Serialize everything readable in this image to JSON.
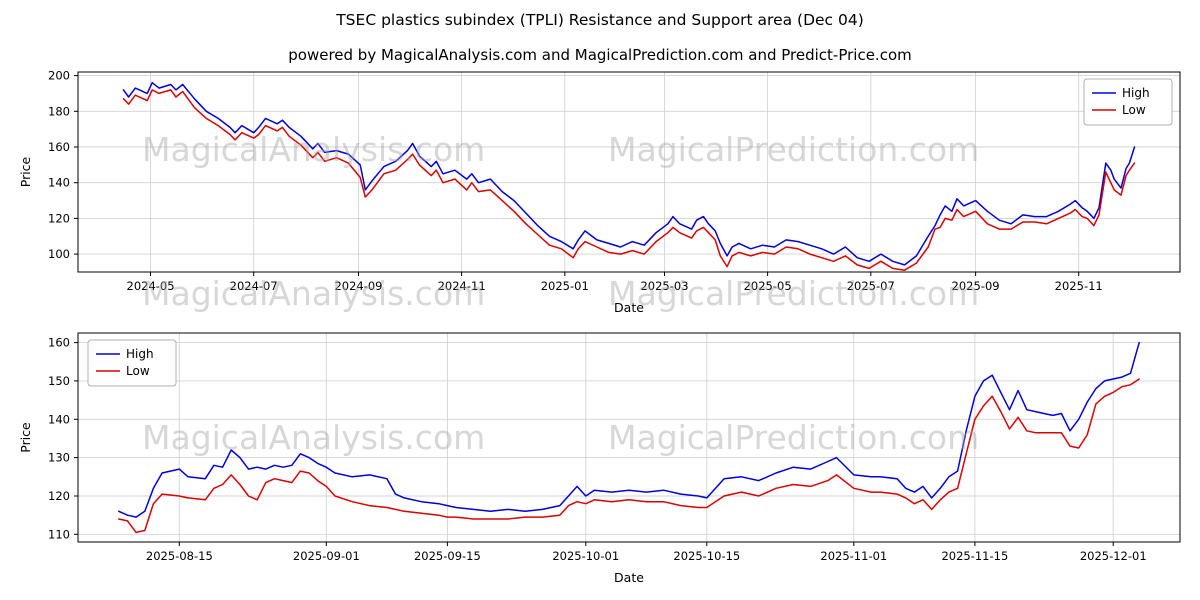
{
  "page": {
    "title": "TSEC plastics subindex (TPLI) Resistance and Support area (Dec 04)",
    "subtitle": "powered by MagicalAnalysis.com and MagicalPrediction.com and Predict-Price.com"
  },
  "watermarks": {
    "left": "MagicalAnalysis.com",
    "right": "MagicalPrediction.com"
  },
  "colors": {
    "high": "#0000dd",
    "low": "#dd0000",
    "grid": "#d3d3d3",
    "spine": "#000000",
    "legend_border": "#b0b0b0",
    "watermark": "#d7d7d7"
  },
  "chart_data": [
    {
      "type": "line",
      "title": "",
      "xlabel": "Date",
      "ylabel": "Price",
      "legend": "upper-right",
      "legend_entries": [
        "High",
        "Low"
      ],
      "grid": true,
      "x_margin": 0.045,
      "ylim": [
        90,
        202
      ],
      "yticks": [
        100,
        120,
        140,
        160,
        180,
        200
      ],
      "xticks": [
        {
          "pos": "2024-05-01",
          "label": "2024-05"
        },
        {
          "pos": "2024-07-01",
          "label": "2024-07"
        },
        {
          "pos": "2024-09-01",
          "label": "2024-09"
        },
        {
          "pos": "2024-11-01",
          "label": "2024-11"
        },
        {
          "pos": "2025-01-01",
          "label": "2025-01"
        },
        {
          "pos": "2025-03-01",
          "label": "2025-03"
        },
        {
          "pos": "2025-05-01",
          "label": "2025-05"
        },
        {
          "pos": "2025-07-01",
          "label": "2025-07"
        },
        {
          "pos": "2025-09-01",
          "label": "2025-09"
        },
        {
          "pos": "2025-11-01",
          "label": "2025-11"
        }
      ],
      "x": [
        "2024-04-15",
        "2024-04-18",
        "2024-04-22",
        "2024-04-29",
        "2024-05-02",
        "2024-05-06",
        "2024-05-13",
        "2024-05-16",
        "2024-05-20",
        "2024-05-27",
        "2024-06-03",
        "2024-06-10",
        "2024-06-17",
        "2024-06-20",
        "2024-06-24",
        "2024-07-01",
        "2024-07-04",
        "2024-07-08",
        "2024-07-15",
        "2024-07-18",
        "2024-07-22",
        "2024-07-29",
        "2024-08-05",
        "2024-08-08",
        "2024-08-12",
        "2024-08-19",
        "2024-08-26",
        "2024-09-02",
        "2024-09-05",
        "2024-09-09",
        "2024-09-16",
        "2024-09-23",
        "2024-09-30",
        "2024-10-03",
        "2024-10-07",
        "2024-10-14",
        "2024-10-17",
        "2024-10-21",
        "2024-10-28",
        "2024-11-04",
        "2024-11-07",
        "2024-11-11",
        "2024-11-18",
        "2024-11-25",
        "2024-12-02",
        "2024-12-09",
        "2024-12-16",
        "2024-12-23",
        "2024-12-30",
        "2025-01-06",
        "2025-01-09",
        "2025-01-13",
        "2025-01-20",
        "2025-01-27",
        "2025-02-03",
        "2025-02-10",
        "2025-02-17",
        "2025-02-24",
        "2025-03-03",
        "2025-03-06",
        "2025-03-10",
        "2025-03-17",
        "2025-03-20",
        "2025-03-24",
        "2025-03-27",
        "2025-03-31",
        "2025-04-03",
        "2025-04-07",
        "2025-04-10",
        "2025-04-14",
        "2025-04-21",
        "2025-04-28",
        "2025-05-05",
        "2025-05-12",
        "2025-05-19",
        "2025-05-26",
        "2025-06-02",
        "2025-06-09",
        "2025-06-16",
        "2025-06-23",
        "2025-06-30",
        "2025-07-07",
        "2025-07-14",
        "2025-07-21",
        "2025-07-28",
        "2025-08-04",
        "2025-08-08",
        "2025-08-11",
        "2025-08-14",
        "2025-08-18",
        "2025-08-21",
        "2025-08-25",
        "2025-09-01",
        "2025-09-08",
        "2025-09-15",
        "2025-09-22",
        "2025-09-29",
        "2025-10-06",
        "2025-10-13",
        "2025-10-20",
        "2025-10-27",
        "2025-10-30",
        "2025-11-03",
        "2025-11-06",
        "2025-11-10",
        "2025-11-13",
        "2025-11-17",
        "2025-11-20",
        "2025-11-22",
        "2025-11-26",
        "2025-11-29",
        "2025-12-01",
        "2025-12-04"
      ],
      "series": [
        {
          "name": "High",
          "color": "#0000dd",
          "values": [
            192,
            188,
            193,
            190,
            196,
            193,
            195,
            192,
            195,
            187,
            180,
            176,
            171,
            168,
            172,
            168,
            171,
            176,
            173,
            175,
            171,
            166,
            159,
            162,
            157,
            158,
            156,
            150,
            136,
            141,
            149,
            152,
            158,
            162,
            155,
            149,
            152,
            145,
            147,
            142,
            145,
            140,
            142,
            135,
            130,
            123,
            116,
            110,
            107,
            103,
            108,
            113,
            108,
            106,
            104,
            107,
            105,
            112,
            117,
            121,
            117,
            114,
            119,
            121,
            117,
            113,
            106,
            99,
            104,
            106,
            103,
            105,
            104,
            108,
            107,
            105,
            103,
            100,
            104,
            98,
            96,
            100,
            96,
            94,
            99,
            110,
            116,
            122,
            127,
            124,
            131,
            127,
            130,
            124,
            119,
            117,
            122,
            121,
            121,
            124,
            128,
            130,
            126,
            124,
            120,
            126,
            151,
            147,
            142,
            137,
            148,
            151,
            160
          ]
        },
        {
          "name": "Low",
          "color": "#dd0000",
          "values": [
            187,
            184,
            189,
            186,
            192,
            190,
            192,
            188,
            191,
            182,
            176,
            172,
            167,
            164,
            168,
            165,
            167,
            172,
            169,
            171,
            166,
            161,
            154,
            157,
            152,
            154,
            151,
            143,
            132,
            136,
            145,
            147,
            153,
            156,
            150,
            144,
            147,
            140,
            142,
            136,
            140,
            135,
            136,
            130,
            124,
            117,
            111,
            105,
            103,
            98,
            103,
            107,
            104,
            101,
            100,
            102,
            100,
            107,
            112,
            115,
            112,
            109,
            113,
            115,
            112,
            108,
            99,
            93,
            99,
            101,
            99,
            101,
            100,
            104,
            103,
            100,
            98,
            96,
            99,
            94,
            92,
            96,
            92,
            91,
            95,
            104,
            114,
            115,
            120,
            119,
            125,
            121,
            124,
            117,
            114,
            114,
            118,
            118,
            117,
            120,
            123,
            125,
            121,
            120,
            116,
            122,
            146,
            140,
            136,
            133,
            144,
            147,
            151
          ]
        }
      ]
    },
    {
      "type": "line",
      "title": "",
      "xlabel": "Date",
      "ylabel": "Price",
      "legend": "upper-left",
      "legend_entries": [
        "High",
        "Low"
      ],
      "grid": true,
      "x_margin": 0.04,
      "ylim": [
        108,
        162.5
      ],
      "yticks": [
        110,
        120,
        130,
        140,
        150,
        160
      ],
      "xticks": [
        {
          "pos": "2025-08-15",
          "label": "2025-08-15"
        },
        {
          "pos": "2025-09-01",
          "label": "2025-09-01"
        },
        {
          "pos": "2025-09-15",
          "label": "2025-09-15"
        },
        {
          "pos": "2025-10-01",
          "label": "2025-10-01"
        },
        {
          "pos": "2025-10-15",
          "label": "2025-10-15"
        },
        {
          "pos": "2025-11-01",
          "label": "2025-11-01"
        },
        {
          "pos": "2025-11-15",
          "label": "2025-11-15"
        },
        {
          "pos": "2025-12-01",
          "label": "2025-12-01"
        }
      ],
      "x": [
        "2025-08-08",
        "2025-08-09",
        "2025-08-10",
        "2025-08-11",
        "2025-08-12",
        "2025-08-13",
        "2025-08-15",
        "2025-08-16",
        "2025-08-18",
        "2025-08-19",
        "2025-08-20",
        "2025-08-21",
        "2025-08-22",
        "2025-08-23",
        "2025-08-24",
        "2025-08-25",
        "2025-08-26",
        "2025-08-27",
        "2025-08-28",
        "2025-08-29",
        "2025-08-30",
        "2025-08-31",
        "2025-09-01",
        "2025-09-02",
        "2025-09-04",
        "2025-09-06",
        "2025-09-08",
        "2025-09-09",
        "2025-09-10",
        "2025-09-12",
        "2025-09-14",
        "2025-09-15",
        "2025-09-16",
        "2025-09-18",
        "2025-09-20",
        "2025-09-22",
        "2025-09-24",
        "2025-09-26",
        "2025-09-28",
        "2025-09-29",
        "2025-09-30",
        "2025-10-01",
        "2025-10-02",
        "2025-10-04",
        "2025-10-06",
        "2025-10-08",
        "2025-10-10",
        "2025-10-12",
        "2025-10-14",
        "2025-10-15",
        "2025-10-17",
        "2025-10-19",
        "2025-10-21",
        "2025-10-23",
        "2025-10-25",
        "2025-10-27",
        "2025-10-29",
        "2025-10-30",
        "2025-11-01",
        "2025-11-03",
        "2025-11-04",
        "2025-11-06",
        "2025-11-07",
        "2025-11-08",
        "2025-11-09",
        "2025-11-10",
        "2025-11-11",
        "2025-11-12",
        "2025-11-13",
        "2025-11-14",
        "2025-11-15",
        "2025-11-16",
        "2025-11-17",
        "2025-11-18",
        "2025-11-19",
        "2025-11-20",
        "2025-11-21",
        "2025-11-22",
        "2025-11-24",
        "2025-11-25",
        "2025-11-26",
        "2025-11-27",
        "2025-11-28",
        "2025-11-29",
        "2025-11-30",
        "2025-12-01",
        "2025-12-02",
        "2025-12-03",
        "2025-12-04"
      ],
      "series": [
        {
          "name": "High",
          "color": "#0000dd",
          "values": [
            116,
            115,
            114.5,
            116,
            122,
            126,
            127,
            125,
            124.5,
            128,
            127.5,
            132,
            130,
            127,
            127.5,
            127,
            128,
            127.5,
            128,
            131,
            130,
            128.5,
            127.5,
            126,
            125,
            125.5,
            124.5,
            120.5,
            119.5,
            118.5,
            118,
            117.5,
            117,
            116.5,
            116,
            116.5,
            116,
            116.5,
            117.5,
            120,
            122.5,
            120,
            121.5,
            121,
            121.5,
            121,
            121.5,
            120.5,
            120,
            119.5,
            124.5,
            125,
            124,
            126,
            127.5,
            127,
            129,
            130,
            125.5,
            125,
            125,
            124.5,
            122,
            121,
            122.5,
            119.5,
            122,
            125,
            126.5,
            137,
            146,
            150,
            151.5,
            147,
            142.5,
            147.5,
            142.5,
            142,
            141,
            141.5,
            137,
            140,
            144.5,
            148,
            150,
            150.5,
            151,
            152,
            160
          ]
        },
        {
          "name": "Low",
          "color": "#dd0000",
          "values": [
            114,
            113.5,
            110.5,
            111,
            118,
            120.5,
            120,
            119.5,
            119,
            122,
            123,
            125.5,
            123,
            120,
            119,
            123.5,
            124.5,
            124,
            123.5,
            126.5,
            126,
            124,
            122.5,
            120,
            118.5,
            117.5,
            117,
            116.5,
            116,
            115.5,
            115,
            114.5,
            114.5,
            114,
            114,
            114,
            114.5,
            114.5,
            115,
            117.5,
            118.5,
            118,
            119,
            118.5,
            119,
            118.5,
            118.5,
            117.5,
            117,
            117,
            120,
            121,
            120,
            122,
            123,
            122.5,
            124,
            125.5,
            122,
            121,
            121,
            120.5,
            119.5,
            118,
            119,
            116.5,
            119,
            121,
            122,
            131,
            140,
            143.5,
            146,
            142,
            137.5,
            140.5,
            137,
            136.5,
            136.5,
            136.5,
            133,
            132.5,
            136,
            144,
            146,
            147,
            148.5,
            149,
            150.5
          ]
        }
      ]
    }
  ]
}
